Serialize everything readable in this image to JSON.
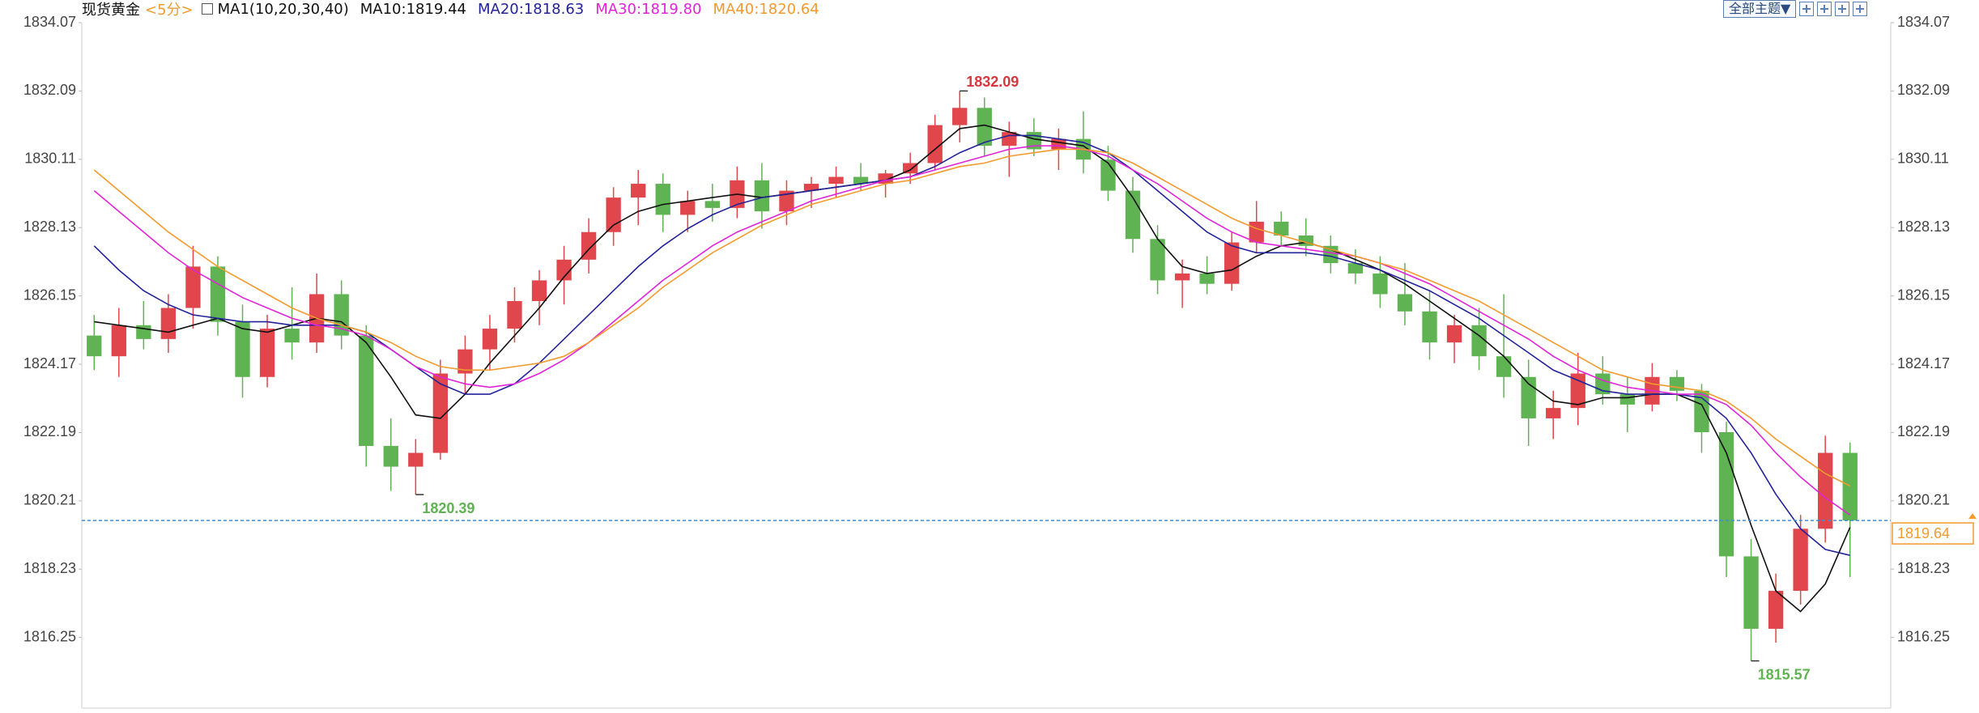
{
  "chart_data": {
    "type": "candlestick",
    "title": "现货黄金",
    "subtitle": "<5分>",
    "indicator_label": "MA1(10,20,30,40)",
    "theme_button": "全部主题▼",
    "up_color": "#e0464b",
    "down_color": "#5fb352",
    "ylim": [
      1814.2,
      1834.07
    ],
    "yticks": [
      1834.07,
      1832.09,
      1830.11,
      1828.13,
      1826.15,
      1824.17,
      1822.19,
      1820.21,
      1818.23,
      1816.25
    ],
    "last_price": 1819.64,
    "last_price_color": "#3b8fd6",
    "annotations": [
      {
        "value": 1832.09,
        "kind": "high",
        "color": "#d9363e"
      },
      {
        "value": 1820.39,
        "kind": "low",
        "color": "#5fb352"
      },
      {
        "value": 1815.57,
        "kind": "low",
        "color": "#5fb352"
      }
    ],
    "candles": [
      [
        1825.0,
        1825.6,
        1824.0,
        1824.4
      ],
      [
        1824.4,
        1825.8,
        1823.8,
        1825.3
      ],
      [
        1825.3,
        1826.0,
        1824.6,
        1824.9
      ],
      [
        1824.9,
        1826.2,
        1824.5,
        1825.8
      ],
      [
        1825.8,
        1827.6,
        1825.2,
        1827.0
      ],
      [
        1827.0,
        1827.3,
        1825.0,
        1825.4
      ],
      [
        1825.4,
        1825.9,
        1823.2,
        1823.8
      ],
      [
        1823.8,
        1825.6,
        1823.5,
        1825.2
      ],
      [
        1825.2,
        1826.4,
        1824.3,
        1824.8
      ],
      [
        1824.8,
        1826.8,
        1824.5,
        1826.2
      ],
      [
        1826.2,
        1826.6,
        1824.6,
        1825.0
      ],
      [
        1825.0,
        1825.3,
        1821.2,
        1821.8
      ],
      [
        1821.8,
        1822.6,
        1820.5,
        1821.2
      ],
      [
        1821.2,
        1822.0,
        1820.39,
        1821.6
      ],
      [
        1821.6,
        1824.3,
        1821.4,
        1823.9
      ],
      [
        1823.9,
        1825.0,
        1823.3,
        1824.6
      ],
      [
        1824.6,
        1825.6,
        1824.0,
        1825.2
      ],
      [
        1825.2,
        1826.4,
        1824.8,
        1826.0
      ],
      [
        1826.0,
        1826.9,
        1825.3,
        1826.6
      ],
      [
        1826.6,
        1827.6,
        1825.9,
        1827.2
      ],
      [
        1827.2,
        1828.4,
        1826.8,
        1828.0
      ],
      [
        1828.0,
        1829.3,
        1827.6,
        1829.0
      ],
      [
        1829.0,
        1829.8,
        1828.2,
        1829.4
      ],
      [
        1829.4,
        1829.7,
        1828.0,
        1828.5
      ],
      [
        1828.5,
        1829.2,
        1828.0,
        1828.9
      ],
      [
        1828.9,
        1829.4,
        1828.3,
        1828.7
      ],
      [
        1828.7,
        1829.9,
        1828.4,
        1829.5
      ],
      [
        1829.5,
        1830.0,
        1828.1,
        1828.6
      ],
      [
        1828.6,
        1829.5,
        1828.2,
        1829.2
      ],
      [
        1829.2,
        1829.6,
        1828.7,
        1829.4
      ],
      [
        1829.4,
        1829.9,
        1829.0,
        1829.6
      ],
      [
        1829.6,
        1830.0,
        1829.2,
        1829.4
      ],
      [
        1829.4,
        1829.8,
        1829.0,
        1829.7
      ],
      [
        1829.7,
        1830.3,
        1829.4,
        1830.0
      ],
      [
        1830.0,
        1831.4,
        1829.8,
        1831.1
      ],
      [
        1831.1,
        1832.09,
        1830.6,
        1831.6
      ],
      [
        1831.6,
        1831.9,
        1830.2,
        1830.5
      ],
      [
        1830.5,
        1831.2,
        1829.6,
        1830.9
      ],
      [
        1830.9,
        1831.3,
        1830.2,
        1830.4
      ],
      [
        1830.4,
        1831.0,
        1829.8,
        1830.7
      ],
      [
        1830.7,
        1831.5,
        1829.7,
        1830.1
      ],
      [
        1830.1,
        1830.5,
        1828.9,
        1829.2
      ],
      [
        1829.2,
        1829.6,
        1827.4,
        1827.8
      ],
      [
        1827.8,
        1828.2,
        1826.2,
        1826.6
      ],
      [
        1826.6,
        1827.2,
        1825.8,
        1826.8
      ],
      [
        1826.8,
        1827.3,
        1826.2,
        1826.5
      ],
      [
        1826.5,
        1828.0,
        1826.3,
        1827.7
      ],
      [
        1827.7,
        1828.9,
        1827.4,
        1828.3
      ],
      [
        1828.3,
        1828.6,
        1827.6,
        1827.9
      ],
      [
        1827.9,
        1828.4,
        1827.3,
        1827.6
      ],
      [
        1827.6,
        1827.9,
        1826.8,
        1827.1
      ],
      [
        1827.1,
        1827.5,
        1826.5,
        1826.8
      ],
      [
        1826.8,
        1827.3,
        1825.8,
        1826.2
      ],
      [
        1826.2,
        1827.1,
        1825.3,
        1825.7
      ],
      [
        1825.7,
        1826.3,
        1824.3,
        1824.8
      ],
      [
        1824.8,
        1825.6,
        1824.2,
        1825.3
      ],
      [
        1825.3,
        1825.8,
        1824.0,
        1824.4
      ],
      [
        1824.4,
        1826.2,
        1823.2,
        1823.8
      ],
      [
        1823.8,
        1824.3,
        1821.8,
        1822.6
      ],
      [
        1822.6,
        1823.4,
        1822.0,
        1822.9
      ],
      [
        1822.9,
        1824.5,
        1822.4,
        1823.9
      ],
      [
        1823.9,
        1824.4,
        1823.0,
        1823.3
      ],
      [
        1823.3,
        1823.8,
        1822.2,
        1823.0
      ],
      [
        1823.0,
        1824.2,
        1822.8,
        1823.8
      ],
      [
        1823.8,
        1824.0,
        1823.1,
        1823.4
      ],
      [
        1823.4,
        1823.6,
        1821.6,
        1822.2
      ],
      [
        1822.2,
        1822.5,
        1818.0,
        1818.6
      ],
      [
        1818.6,
        1819.1,
        1815.57,
        1816.5
      ],
      [
        1816.5,
        1818.1,
        1816.1,
        1817.6
      ],
      [
        1817.6,
        1819.8,
        1817.2,
        1819.4
      ],
      [
        1819.4,
        1822.1,
        1819.0,
        1821.6
      ],
      [
        1821.6,
        1821.9,
        1818.0,
        1819.64
      ]
    ],
    "series": [
      {
        "name": "MA10",
        "label": "MA10:1819.44",
        "color": "#111111",
        "values": [
          1825.4,
          1825.3,
          1825.2,
          1825.1,
          1825.3,
          1825.5,
          1825.2,
          1825.1,
          1825.3,
          1825.5,
          1825.4,
          1824.8,
          1823.8,
          1822.7,
          1822.6,
          1823.3,
          1824.2,
          1825.0,
          1825.8,
          1826.7,
          1827.5,
          1828.2,
          1828.6,
          1828.8,
          1828.9,
          1829.0,
          1829.1,
          1829.0,
          1829.1,
          1829.2,
          1829.3,
          1829.4,
          1829.5,
          1829.8,
          1830.4,
          1831.0,
          1831.1,
          1830.9,
          1830.7,
          1830.6,
          1830.5,
          1830.0,
          1829.0,
          1827.8,
          1827.0,
          1826.8,
          1826.9,
          1827.3,
          1827.6,
          1827.7,
          1827.5,
          1827.2,
          1826.9,
          1826.5,
          1826.0,
          1825.5,
          1825.0,
          1824.4,
          1823.6,
          1823.1,
          1823.0,
          1823.2,
          1823.2,
          1823.3,
          1823.3,
          1823.0,
          1821.6,
          1819.5,
          1817.6,
          1817.0,
          1817.8,
          1819.44
        ]
      },
      {
        "name": "MA20",
        "label": "MA20:1818.63",
        "color": "#23239a",
        "values": [
          1827.6,
          1826.9,
          1826.3,
          1825.9,
          1825.6,
          1825.5,
          1825.4,
          1825.4,
          1825.3,
          1825.3,
          1825.3,
          1825.1,
          1824.6,
          1824.1,
          1823.6,
          1823.3,
          1823.3,
          1823.6,
          1824.2,
          1824.9,
          1825.6,
          1826.3,
          1827.0,
          1827.6,
          1828.1,
          1828.5,
          1828.8,
          1829.0,
          1829.1,
          1829.2,
          1829.3,
          1829.4,
          1829.5,
          1829.6,
          1829.9,
          1830.3,
          1830.6,
          1830.8,
          1830.8,
          1830.7,
          1830.6,
          1830.3,
          1829.8,
          1829.2,
          1828.6,
          1828.0,
          1827.6,
          1827.4,
          1827.4,
          1827.4,
          1827.3,
          1827.1,
          1826.9,
          1826.6,
          1826.3,
          1825.9,
          1825.5,
          1825.0,
          1824.5,
          1824.0,
          1823.7,
          1823.4,
          1823.3,
          1823.3,
          1823.3,
          1823.2,
          1822.6,
          1821.6,
          1820.4,
          1819.4,
          1818.8,
          1818.63
        ]
      },
      {
        "name": "MA30",
        "label": "MA30:1819.80",
        "color": "#e024d8",
        "values": [
          1829.2,
          1828.6,
          1828.0,
          1827.4,
          1826.9,
          1826.5,
          1826.1,
          1825.8,
          1825.5,
          1825.3,
          1825.2,
          1825.0,
          1824.6,
          1824.1,
          1823.8,
          1823.6,
          1823.5,
          1823.6,
          1823.9,
          1824.3,
          1824.8,
          1825.4,
          1826.0,
          1826.6,
          1827.1,
          1827.6,
          1828.0,
          1828.3,
          1828.6,
          1828.9,
          1829.1,
          1829.3,
          1829.5,
          1829.6,
          1829.8,
          1830.0,
          1830.2,
          1830.4,
          1830.5,
          1830.5,
          1830.4,
          1830.2,
          1829.8,
          1829.4,
          1828.9,
          1828.4,
          1828.0,
          1827.7,
          1827.6,
          1827.5,
          1827.4,
          1827.3,
          1827.1,
          1826.8,
          1826.5,
          1826.1,
          1825.7,
          1825.3,
          1824.9,
          1824.4,
          1824.0,
          1823.7,
          1823.5,
          1823.4,
          1823.3,
          1823.3,
          1823.0,
          1822.4,
          1821.6,
          1820.9,
          1820.3,
          1819.8
        ]
      },
      {
        "name": "MA40",
        "label": "MA40:1820.64",
        "color": "#f39a2e",
        "values": [
          1829.8,
          1829.2,
          1828.6,
          1828.0,
          1827.5,
          1827.0,
          1826.6,
          1826.2,
          1825.8,
          1825.5,
          1825.3,
          1825.1,
          1824.8,
          1824.4,
          1824.1,
          1824.0,
          1824.0,
          1824.1,
          1824.2,
          1824.4,
          1824.8,
          1825.3,
          1825.8,
          1826.4,
          1826.9,
          1827.4,
          1827.8,
          1828.2,
          1828.5,
          1828.8,
          1829.0,
          1829.2,
          1829.4,
          1829.5,
          1829.7,
          1829.9,
          1830.0,
          1830.2,
          1830.3,
          1830.4,
          1830.4,
          1830.3,
          1830.0,
          1829.6,
          1829.2,
          1828.8,
          1828.4,
          1828.1,
          1827.9,
          1827.7,
          1827.5,
          1827.3,
          1827.1,
          1826.9,
          1826.6,
          1826.3,
          1826.0,
          1825.6,
          1825.2,
          1824.8,
          1824.4,
          1824.0,
          1823.8,
          1823.6,
          1823.5,
          1823.4,
          1823.1,
          1822.6,
          1822.0,
          1821.5,
          1821.0,
          1820.64
        ]
      }
    ]
  }
}
